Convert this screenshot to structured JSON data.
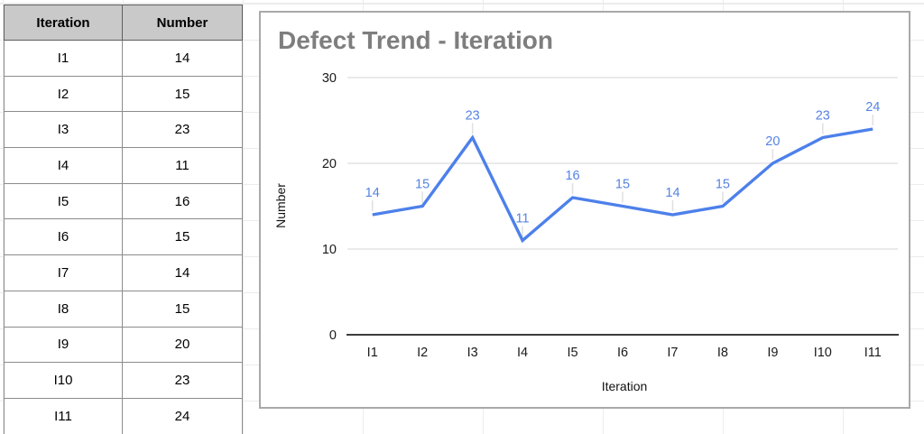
{
  "table": {
    "headers": [
      "Iteration",
      "Number"
    ],
    "rows": [
      [
        "I1",
        "14"
      ],
      [
        "I2",
        "15"
      ],
      [
        "I3",
        "23"
      ],
      [
        "I4",
        "11"
      ],
      [
        "I5",
        "16"
      ],
      [
        "I6",
        "15"
      ],
      [
        "I7",
        "14"
      ],
      [
        "I8",
        "15"
      ],
      [
        "I9",
        "20"
      ],
      [
        "I10",
        "23"
      ],
      [
        "I11",
        "24"
      ]
    ],
    "header_bg": "#c9c9c9"
  },
  "chart_data": {
    "type": "line",
    "title": "Defect Trend - Iteration",
    "xlabel": "Iteration",
    "ylabel": "Number",
    "categories": [
      "I1",
      "I2",
      "I3",
      "I4",
      "I5",
      "I6",
      "I7",
      "I8",
      "I9",
      "I10",
      "I11"
    ],
    "series": [
      {
        "name": "Number",
        "values": [
          14,
          15,
          23,
          11,
          16,
          15,
          14,
          15,
          20,
          23,
          24
        ]
      }
    ],
    "data_labels_shown": true,
    "ylim": [
      0,
      30
    ],
    "yticks": [
      0,
      10,
      20,
      30
    ],
    "grid": true,
    "legend": "none",
    "line_color": "#4d80ea",
    "label_color": "#5583e4",
    "leader_color": "#e0e0e0",
    "gridline_color": "#e4e4e4",
    "baseline_color": "#3c3c3c",
    "tick_color": "#1a1a1a",
    "title_color": "#7e7e7e"
  }
}
